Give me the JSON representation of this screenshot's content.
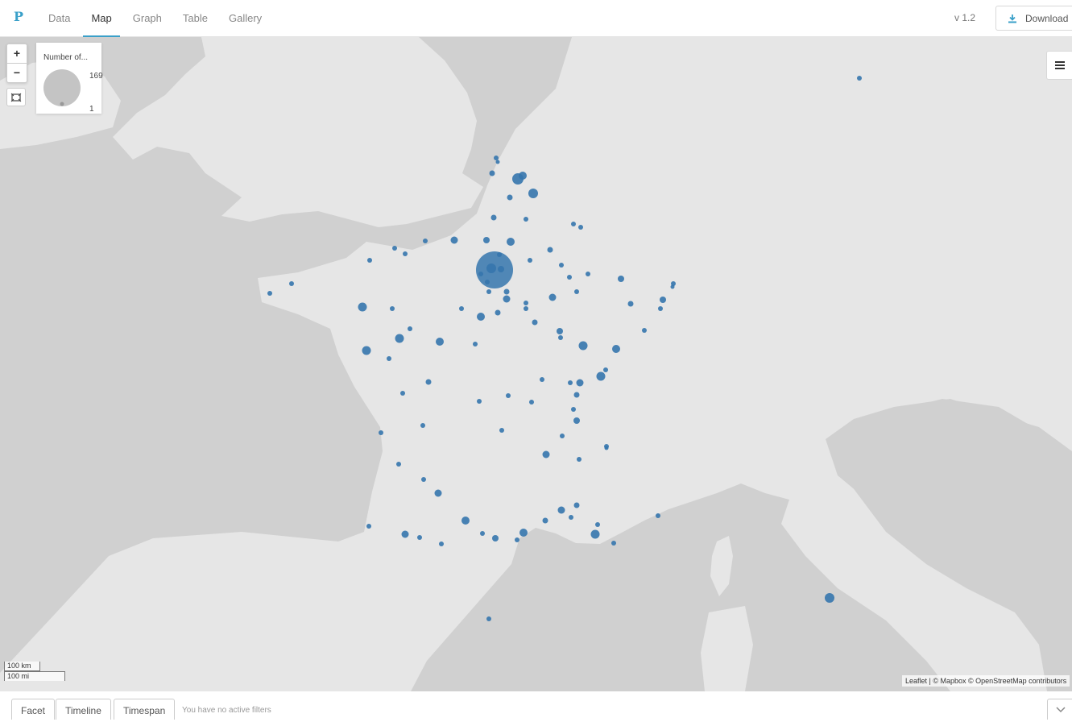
{
  "app": {
    "logo": "P",
    "version": "v 1.2",
    "download_label": "Download"
  },
  "tabs": [
    {
      "label": "Data",
      "active": false
    },
    {
      "label": "Map",
      "active": true
    },
    {
      "label": "Graph",
      "active": false
    },
    {
      "label": "Table",
      "active": false
    },
    {
      "label": "Gallery",
      "active": false
    }
  ],
  "map": {
    "zoom_in": "+",
    "zoom_out": "−",
    "legend": {
      "title": "Number of...",
      "max": "169",
      "min": "1"
    },
    "scale": {
      "km": "100 km",
      "mi": "100 mi"
    },
    "attribution": "Leaflet | © Mapbox © OpenStreetMap contributors",
    "colors": {
      "water": "#d0d0d0",
      "land": "#e6e6e6",
      "marker": "#3576ad"
    },
    "icons": [
      "zoom-in-icon",
      "zoom-out-icon",
      "fit-bounds-icon",
      "layers-menu-icon",
      "download-icon",
      "chevron-down-icon"
    ]
  },
  "bottom": {
    "tabs": [
      "Facet",
      "Timeline",
      "Timespan"
    ],
    "filters_text": "You have no active filters"
  }
}
